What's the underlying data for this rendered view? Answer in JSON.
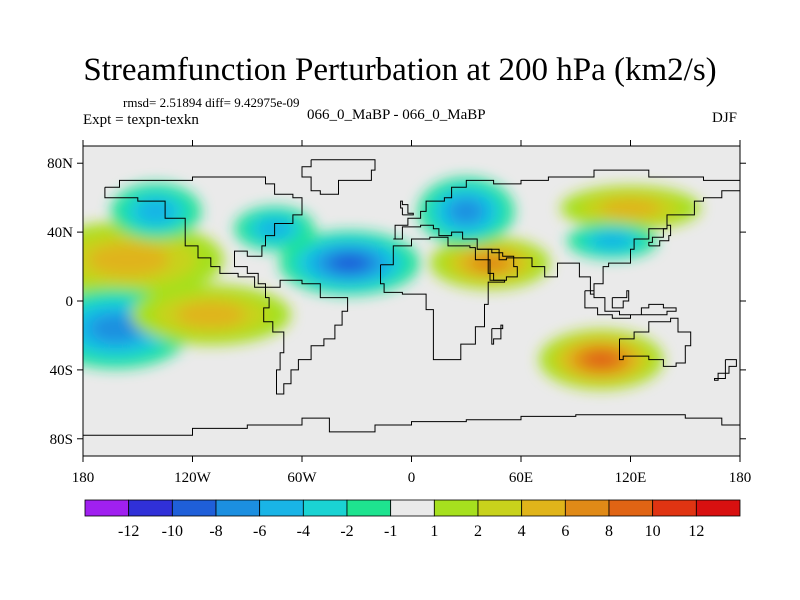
{
  "header": {
    "title": "Streamfunction Perturbation at 200 hPa (km2/s)",
    "stats": "rmsd= 2.51894  diff= 9.42975e-09",
    "expt": "Expt = texpn-texkn",
    "center_label": "066_0_MaBP - 066_0_MaBP",
    "season": "DJF"
  },
  "chart_data": {
    "type": "heatmap",
    "title": "Streamfunction Perturbation at 200 hPa (km2/s)",
    "xlabel": "",
    "ylabel": "",
    "xlim": [
      -180,
      180
    ],
    "ylim": [
      -90,
      90
    ],
    "x_ticks": [
      {
        "value": -180,
        "label": "180"
      },
      {
        "value": -120,
        "label": "120W"
      },
      {
        "value": -60,
        "label": "60W"
      },
      {
        "value": 0,
        "label": "0"
      },
      {
        "value": 60,
        "label": "60E"
      },
      {
        "value": 120,
        "label": "120E"
      },
      {
        "value": 180,
        "label": "180"
      }
    ],
    "y_ticks": [
      {
        "value": 80,
        "label": "80N"
      },
      {
        "value": 40,
        "label": "40N"
      },
      {
        "value": 0,
        "label": "0"
      },
      {
        "value": -40,
        "label": "40S"
      },
      {
        "value": -80,
        "label": "80S"
      }
    ],
    "colorbar": {
      "levels": [
        "-12",
        "-10",
        "-8",
        "-6",
        "-4",
        "-2",
        "-1",
        "1",
        "2",
        "4",
        "6",
        "8",
        "10",
        "12"
      ],
      "colors": [
        "#a020f0",
        "#3030d8",
        "#1f5fd9",
        "#1c8fe0",
        "#19b4e6",
        "#1ad3d3",
        "#1ee38f",
        "#eaeaea",
        "#a6e01e",
        "#c8d21c",
        "#e0b41a",
        "#e08a17",
        "#e06414",
        "#e03412",
        "#d81010"
      ]
    },
    "features": [
      {
        "name": "positive-north-pacific",
        "lon": -155,
        "lat": 24,
        "value": 4
      },
      {
        "name": "negative-north-atlantic",
        "lon": -34,
        "lat": 22,
        "value": -8
      },
      {
        "name": "positive-arabia",
        "lon": 43,
        "lat": 22,
        "value": 6
      },
      {
        "name": "negative-europe-asia",
        "lon": 30,
        "lat": 52,
        "value": -6
      },
      {
        "name": "positive-north-china",
        "lon": 120,
        "lat": 54,
        "value": 4
      },
      {
        "name": "negative-south-pacific",
        "lon": -162,
        "lat": -16,
        "value": -6
      },
      {
        "name": "positive-australia",
        "lon": 104,
        "lat": -34,
        "value": 8
      },
      {
        "name": "positive-east-pacific-south",
        "lon": -110,
        "lat": -8,
        "value": 4
      },
      {
        "name": "negative-north-pacific-east",
        "lon": -140,
        "lat": 52,
        "value": -4
      },
      {
        "name": "negative-north-atlantic-high",
        "lon": -75,
        "lat": 42,
        "value": -4
      },
      {
        "name": "negative-western-pacific",
        "lon": 110,
        "lat": 35,
        "value": -4
      }
    ]
  }
}
